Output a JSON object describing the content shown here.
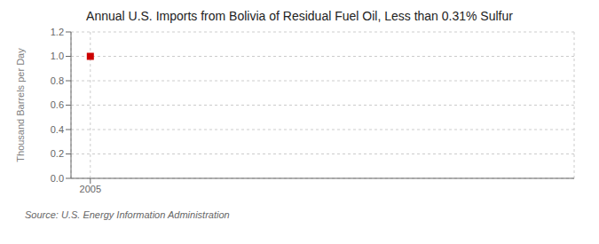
{
  "chart_data": {
    "type": "scatter",
    "title": "Annual U.S. Imports from Bolivia of Residual Fuel Oil, Less than 0.31% Sulfur",
    "ylabel": "Thousand Barrels per Day",
    "source": "Source: U.S. Energy Information Administration",
    "x": [
      2005
    ],
    "values": [
      1.0
    ],
    "color": "#cc0000",
    "marker": "square",
    "xlim": [
      2004.4,
      2020
    ],
    "xticks": [
      2005
    ],
    "ylim": [
      0,
      1.2
    ],
    "yticks": [
      {
        "value": 0,
        "label": "0.0"
      },
      0.2,
      0.4,
      0.6,
      0.8,
      {
        "value": 1,
        "label": "1.0"
      },
      1.2
    ],
    "grid": true
  }
}
